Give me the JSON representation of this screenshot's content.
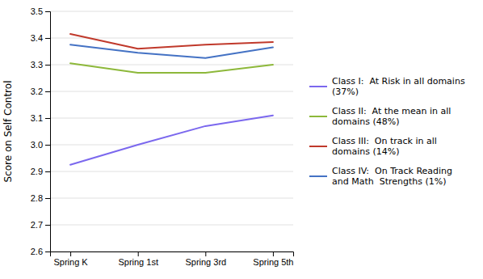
{
  "chart_data": {
    "type": "line",
    "y_label": "Score on Self Control",
    "categories": [
      "Spring K",
      "Spring 1st",
      "Spring 3rd",
      "Spring 5th"
    ],
    "series": [
      {
        "name": "Class I:  At Risk in all domains\n(37%)",
        "color": "#7B68EE",
        "values": [
          2.925,
          3.0,
          3.07,
          3.11
        ]
      },
      {
        "name": "Class II:  At the mean in all\ndomains (48%)",
        "color": "#8DB83A",
        "values": [
          3.305,
          3.27,
          3.27,
          3.3
        ]
      },
      {
        "name": "Class III:  On track in all\ndomains (14%)",
        "color": "#C0392B",
        "values": [
          3.415,
          3.36,
          3.375,
          3.385
        ]
      },
      {
        "name": "Class IV:  On Track Reading\nand Math  Strengths (1%)",
        "color": "#4472C4",
        "values": [
          3.375,
          3.345,
          3.325,
          3.365
        ]
      }
    ],
    "ylim": [
      2.6,
      3.5
    ],
    "yticks": [
      2.6,
      2.7,
      2.8,
      2.9,
      {
        "value": 3.0,
        "label": "3.0"
      },
      3.1,
      3.2,
      3.3,
      3.4,
      3.5
    ],
    "grid": true,
    "legend": "right"
  }
}
